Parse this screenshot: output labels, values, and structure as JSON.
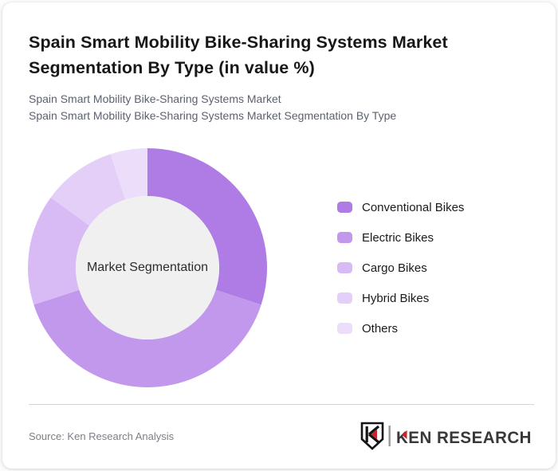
{
  "header": {
    "title_line1": "Spain Smart Mobility Bike-Sharing Systems Market",
    "title_line2": "Segmentation By Type (in value %)",
    "subtitle_line1": "Spain Smart Mobility Bike-Sharing Systems Market",
    "subtitle_line2": "Spain Smart Mobility Bike-Sharing Systems Market Segmentation By Type"
  },
  "chart_data": {
    "type": "pie",
    "variant": "donut",
    "title": "Spain Smart Mobility Bike-Sharing Systems Market Segmentation By Type (in value %)",
    "center_label": "Market Segmentation",
    "unit": "%",
    "categories": [
      "Conventional Bikes",
      "Electric Bikes",
      "Cargo Bikes",
      "Hybrid Bikes",
      "Others"
    ],
    "values": [
      30,
      40,
      15,
      10,
      5
    ],
    "colors": [
      "#ae7ce4",
      "#c298ec",
      "#d8baf4",
      "#e3cff8",
      "#ecdefb"
    ],
    "start_angle_deg": 0,
    "direction": "clockwise",
    "legend_position": "right",
    "inner_radius_ratio": 0.6,
    "center_fill": "#f0f0f0"
  },
  "footer": {
    "source": "Source: Ken Research Analysis",
    "logo_text": "KEN RESEARCH",
    "logo_red": "#c8242a",
    "logo_dark": "#38383b"
  }
}
